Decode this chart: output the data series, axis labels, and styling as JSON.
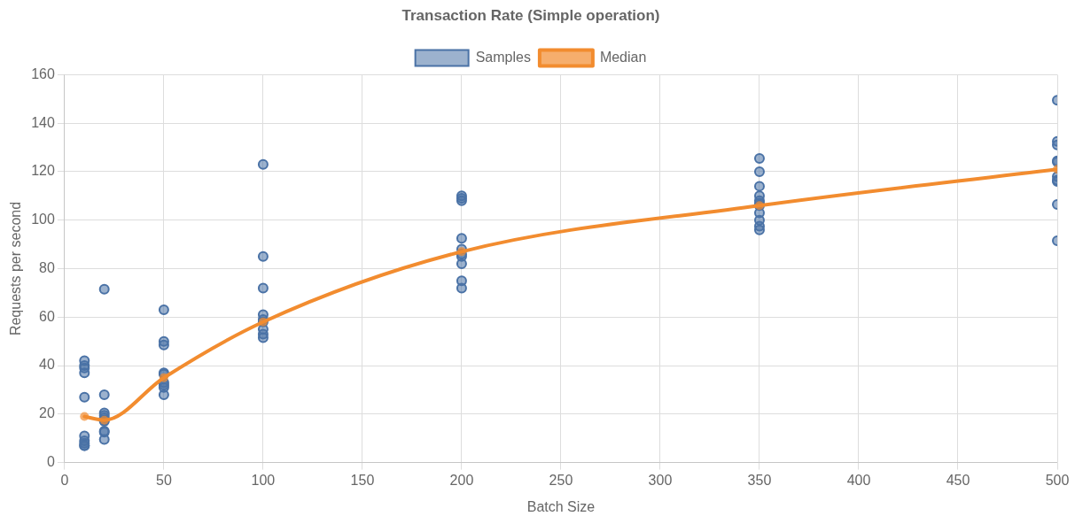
{
  "chart_data": {
    "type": "scatter",
    "title": "Transaction Rate (Simple operation)",
    "xlabel": "Batch Size",
    "ylabel": "Requests per second",
    "xlim": [
      0,
      500
    ],
    "xticks": [
      0,
      50,
      100,
      150,
      200,
      250,
      300,
      350,
      400,
      450,
      500
    ],
    "ylim": [
      0,
      160
    ],
    "yticks": [
      0,
      20,
      40,
      60,
      80,
      100,
      120,
      140,
      160
    ],
    "grid": true,
    "legend": "top",
    "marker": "circle",
    "series": [
      {
        "name": "Samples",
        "type": "scatter",
        "color": "#4a72a6",
        "x": [
          10,
          10,
          10,
          10,
          10,
          10,
          10,
          10,
          10,
          10,
          20,
          20,
          20,
          20,
          20,
          20,
          20,
          20,
          20,
          20,
          50,
          50,
          50,
          50,
          50,
          50,
          50,
          50,
          50,
          100,
          100,
          100,
          100,
          100,
          100,
          100,
          100,
          100,
          200,
          200,
          200,
          200,
          200,
          200,
          200,
          200,
          200,
          200,
          350,
          350,
          350,
          350,
          350,
          350,
          350,
          350,
          350,
          350,
          350,
          500,
          500,
          500,
          500,
          500,
          500,
          500,
          500,
          500,
          500
        ],
        "values": [
          42,
          40,
          39,
          37,
          27,
          11,
          9,
          8,
          7,
          7,
          71.5,
          28,
          20.5,
          19.5,
          18.5,
          17.5,
          17,
          13,
          12.5,
          9.5,
          63,
          50,
          48.5,
          37,
          36.5,
          33,
          32,
          31,
          28,
          123,
          85,
          72,
          61,
          59,
          58,
          55,
          53,
          51.5,
          110,
          109,
          108,
          92.5,
          88,
          86,
          85,
          82,
          75,
          72,
          125.5,
          120,
          114,
          110,
          108,
          107,
          106,
          103,
          100,
          97.5,
          96,
          149.5,
          132.5,
          131,
          124.5,
          124,
          118,
          116.5,
          116,
          106.5,
          91.5
        ]
      },
      {
        "name": "Median",
        "type": "line",
        "color": "#f28c2f",
        "x": [
          10,
          20,
          50,
          100,
          200,
          350,
          500
        ],
        "values": [
          19,
          17.5,
          35,
          58,
          87,
          106,
          121
        ]
      }
    ]
  }
}
